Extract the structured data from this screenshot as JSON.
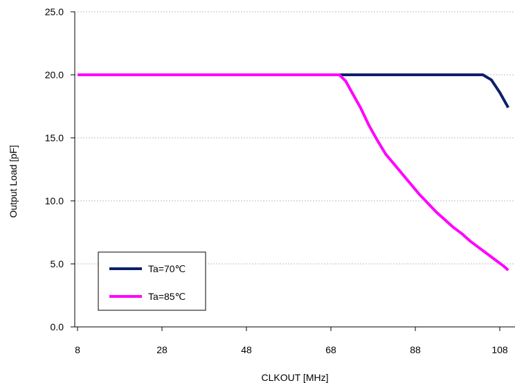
{
  "chart_data": {
    "type": "line",
    "xlabel": "CLKOUT [MHz]",
    "ylabel": "Output Load [pF]",
    "xlim": [
      8,
      110
    ],
    "ylim": [
      0,
      25
    ],
    "x_ticks": [
      "8",
      "28",
      "48",
      "68",
      "88",
      "108"
    ],
    "y_ticks": [
      "0.0",
      "5.0",
      "10.0",
      "15.0",
      "20.0",
      "25.0"
    ],
    "grid": "horizontal",
    "legend_position": "bottom-left",
    "series": [
      {
        "name": "Ta=70℃",
        "color": "#0b1f6b",
        "x": [
          8,
          68,
          104,
          106,
          108,
          110
        ],
        "y": [
          20,
          20,
          20,
          19.6,
          18.6,
          17.4
        ]
      },
      {
        "name": "Ta=85℃",
        "color": "#ff00ff",
        "x": [
          8,
          70,
          71.5,
          73,
          75,
          77,
          79,
          81,
          83,
          85,
          87,
          89,
          91,
          93,
          95,
          97,
          99,
          101,
          103,
          105,
          107,
          109,
          110
        ],
        "y": [
          20,
          20,
          19.5,
          18.6,
          17.4,
          16.0,
          14.8,
          13.7,
          12.9,
          12.1,
          11.3,
          10.5,
          9.8,
          9.1,
          8.5,
          7.9,
          7.4,
          6.8,
          6.3,
          5.8,
          5.3,
          4.8,
          4.5
        ]
      }
    ]
  }
}
